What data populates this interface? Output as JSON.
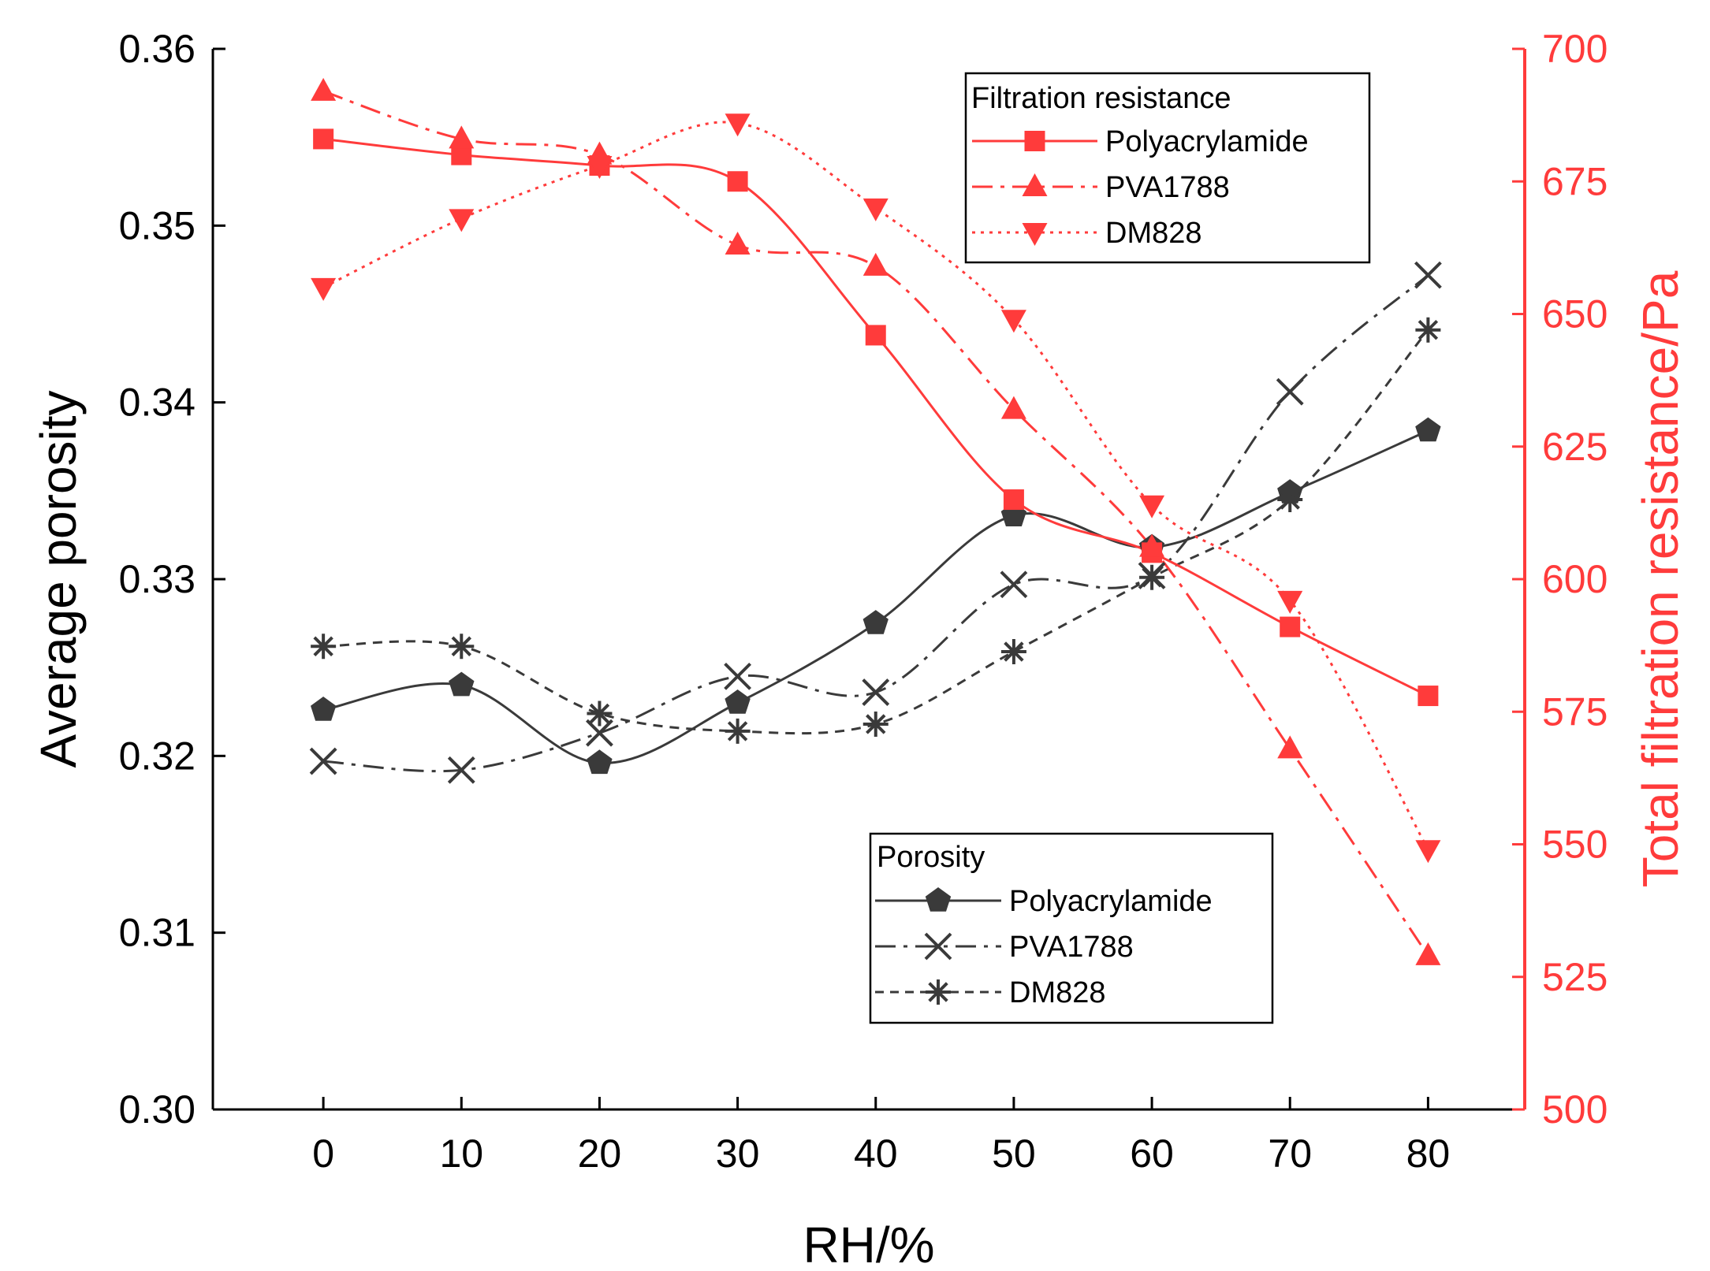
{
  "chart_data": {
    "type": "line",
    "xlabel": "RH/%",
    "ylabel_left": "Average porosity",
    "ylabel_right": "Total filtration resistance/Pa",
    "x": [
      0,
      10,
      20,
      30,
      40,
      50,
      60,
      70,
      80
    ],
    "x_ticks": [
      "0",
      "10",
      "20",
      "30",
      "40",
      "50",
      "60",
      "70",
      "80"
    ],
    "xlim": [
      -8,
      87
    ],
    "ylim_left": [
      0.3,
      0.36
    ],
    "ylim_right": [
      500,
      700
    ],
    "y_ticks_left": [
      "0.30",
      "0.31",
      "0.32",
      "0.33",
      "0.34",
      "0.35",
      "0.36"
    ],
    "y_ticks_right": [
      "500",
      "525",
      "550",
      "575",
      "600",
      "625",
      "650",
      "675",
      "700"
    ],
    "colors": {
      "porosity": "#3a3a3a",
      "resistance": "#ff3b3b",
      "axis_right": "#ff3b3b"
    },
    "legends": {
      "resistance": {
        "title": "Filtration resistance",
        "position": "top-right"
      },
      "porosity": {
        "title": "Porosity",
        "position": "bottom-right"
      }
    },
    "series": [
      {
        "name": "Polyacrylamide",
        "group": "resistance",
        "axis": "right",
        "marker": "square",
        "line": "solid",
        "values": [
          683,
          680,
          678,
          675,
          646,
          615,
          605,
          591,
          578
        ]
      },
      {
        "name": "PVA1788",
        "group": "resistance",
        "axis": "right",
        "marker": "triangle-up",
        "line": "dashdot",
        "values": [
          692,
          683,
          680,
          663,
          659,
          632,
          606,
          568,
          529
        ]
      },
      {
        "name": "DM828",
        "group": "resistance",
        "axis": "right",
        "marker": "triangle-down",
        "line": "dotted",
        "values": [
          655,
          668,
          678,
          686,
          670,
          649,
          614,
          596,
          549
        ]
      },
      {
        "name": "Polyacrylamide",
        "group": "porosity",
        "axis": "left",
        "marker": "pentagon",
        "line": "solid",
        "values": [
          0.3226,
          0.324,
          0.3196,
          0.323,
          0.3275,
          0.3336,
          0.3318,
          0.3349,
          0.3384
        ]
      },
      {
        "name": "PVA1788",
        "group": "porosity",
        "axis": "left",
        "marker": "x",
        "line": "dashdot",
        "values": [
          0.3197,
          0.3192,
          0.3213,
          0.3245,
          0.3236,
          0.3297,
          0.3302,
          0.3406,
          0.3472
        ]
      },
      {
        "name": "DM828",
        "group": "porosity",
        "axis": "left",
        "marker": "asterisk",
        "line": "dashed",
        "values": [
          0.3262,
          0.3262,
          0.3224,
          0.3214,
          0.3218,
          0.3259,
          0.3301,
          0.3345,
          0.3441
        ]
      }
    ]
  }
}
